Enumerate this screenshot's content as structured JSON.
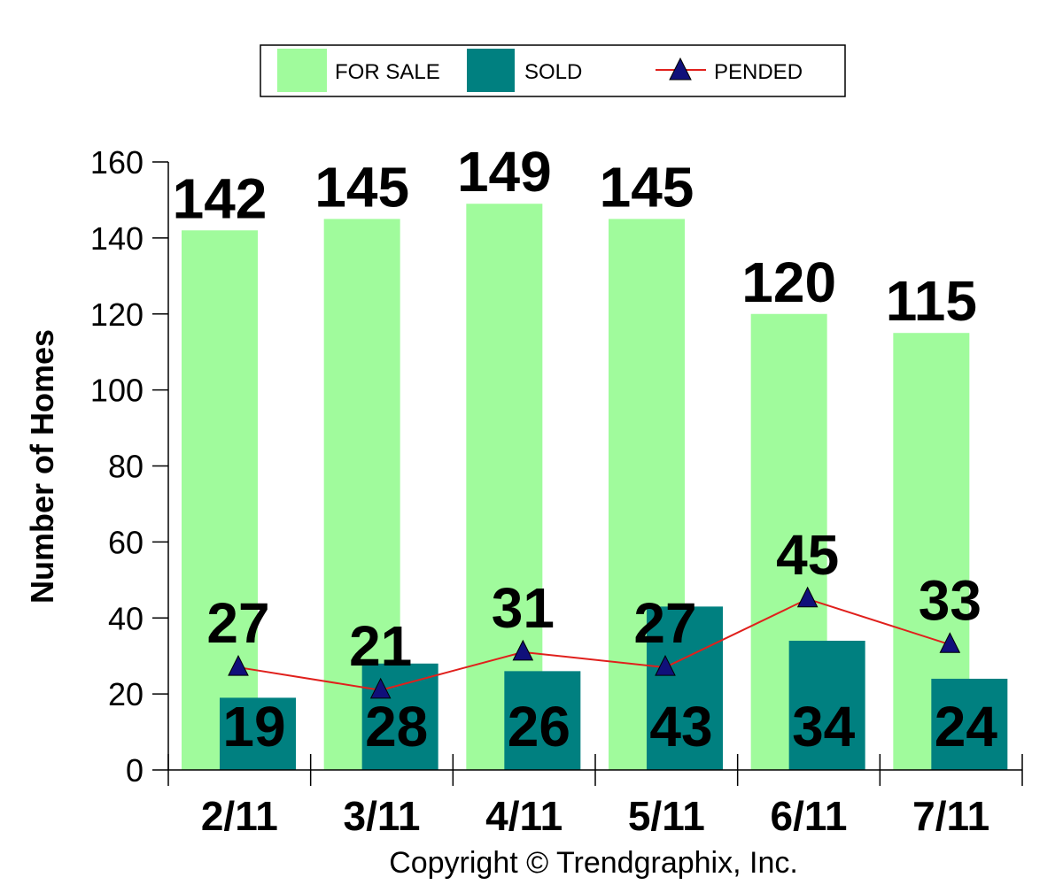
{
  "colors": {
    "for_sale": "#a0fb9c",
    "sold": "#008080",
    "pended_line": "#e0201c",
    "pended_marker": "#10107a"
  },
  "legend": {
    "items": [
      {
        "label": "FOR SALE",
        "icon": "swatch-for-sale"
      },
      {
        "label": "SOLD",
        "icon": "swatch-sold"
      },
      {
        "label": "PENDED",
        "icon": "triangle-marker-line"
      }
    ]
  },
  "copyright": "Copyright © Trendgraphix, Inc.",
  "chart_data": {
    "type": "bar",
    "categories": [
      "2/11",
      "3/11",
      "4/11",
      "5/11",
      "6/11",
      "7/11"
    ],
    "series": [
      {
        "name": "FOR SALE",
        "type": "bar",
        "values": [
          142,
          145,
          149,
          145,
          120,
          115
        ]
      },
      {
        "name": "SOLD",
        "type": "bar",
        "values": [
          19,
          28,
          26,
          43,
          34,
          24
        ]
      },
      {
        "name": "PENDED",
        "type": "line",
        "marker": "triangle",
        "values": [
          27,
          21,
          31,
          27,
          45,
          33
        ]
      }
    ],
    "ylabel": "Number of Homes",
    "xlabel": "",
    "ylim": [
      0,
      160
    ],
    "yticks": [
      0,
      20,
      40,
      60,
      80,
      100,
      120,
      140,
      160
    ],
    "legend_position": "top-center",
    "grid": false
  }
}
